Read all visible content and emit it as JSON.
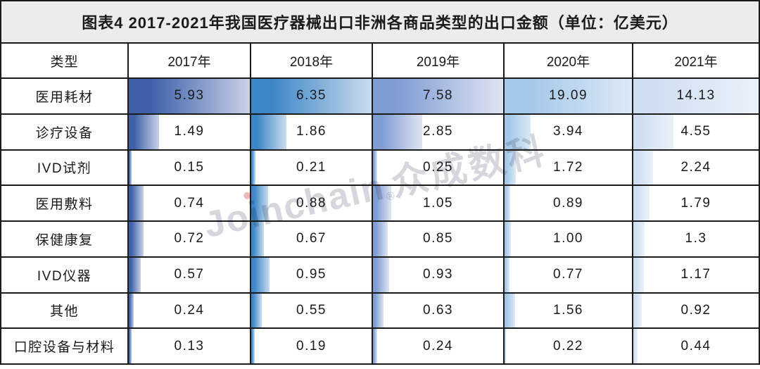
{
  "figure": {
    "title": "图表4  2017-2021年我国医疗器械出口非洲各商品类型的出口金额（单位：亿美元）",
    "watermark": {
      "latin": "Joinchain",
      "reg": "®",
      "cjk": "众成数科"
    }
  },
  "colors": {
    "border": "#1b1b1b",
    "title_background": "#ececec",
    "text": "#1a1a1a",
    "watermark_gray": "#c9cad0",
    "watermark_dot_pink": "#e9a2a2"
  },
  "chart_data": {
    "type": "table",
    "title": "图表4  2017-2021年我国医疗器械出口非洲各商品类型的出口金额（单位：亿美元）",
    "unit": "亿美元",
    "row_header_label": "类型",
    "columns": [
      "2017年",
      "2018年",
      "2019年",
      "2020年",
      "2021年"
    ],
    "rows": [
      {
        "label": "医用耗材",
        "values": [
          "5.93",
          "6.35",
          "7.58",
          "19.09",
          "14.13"
        ]
      },
      {
        "label": "诊疗设备",
        "values": [
          "1.49",
          "1.86",
          "2.85",
          "3.94",
          "4.55"
        ]
      },
      {
        "label": "IVD试剂",
        "values": [
          "0.15",
          "0.21",
          "0.25",
          "1.72",
          "2.24"
        ]
      },
      {
        "label": "医用敷料",
        "values": [
          "0.74",
          "0.88",
          "1.05",
          "0.89",
          "1.79"
        ]
      },
      {
        "label": "保健康复",
        "values": [
          "0.72",
          "0.67",
          "0.85",
          "1.00",
          "1.3"
        ]
      },
      {
        "label": "IVD仪器",
        "values": [
          "0.57",
          "0.95",
          "0.93",
          "0.77",
          "1.17"
        ]
      },
      {
        "label": "其他",
        "values": [
          "0.24",
          "0.55",
          "0.63",
          "1.56",
          "0.92"
        ]
      },
      {
        "label": "口腔设备与材料",
        "values": [
          "0.13",
          "0.19",
          "0.24",
          "0.22",
          "0.44"
        ]
      }
    ],
    "databar": {
      "scale": "per-column-max",
      "column_max": [
        5.93,
        6.35,
        7.58,
        19.09,
        14.13
      ],
      "column_colors": [
        {
          "start": "#3e61aa",
          "end": "#c8d1e6"
        },
        {
          "start": "#3e87c7",
          "end": "#c9dcee"
        },
        {
          "start": "#7f9cd3",
          "end": "#dfe4f2"
        },
        {
          "start": "#a4c8e9",
          "end": "#dce9f6"
        },
        {
          "start": "#cfdff1",
          "end": "#eaf1f9"
        }
      ]
    }
  }
}
